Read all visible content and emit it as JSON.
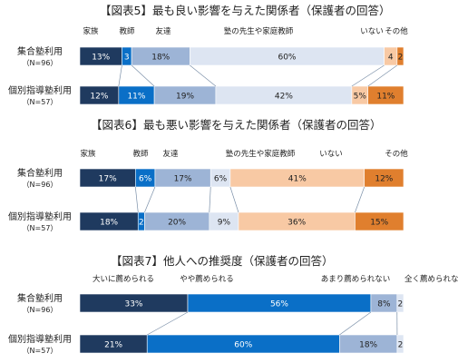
{
  "chart_data": [
    {
      "type": "bar",
      "title": "【図表5】最も良い影響を与えた関係者（保護者の回答）",
      "orientation": "horizontal-stacked-percent",
      "categories": [
        "集合塾利用",
        "個別指導塾利用"
      ],
      "category_notes": [
        "（N=96）",
        "（N=57）"
      ],
      "series": [
        {
          "name": "家族",
          "values": [
            13,
            12
          ],
          "color": "#1f3a5f",
          "labels": [
            "13%",
            "12%"
          ]
        },
        {
          "name": "教師",
          "values": [
            3,
            11
          ],
          "color": "#0a6fc7",
          "labels": [
            "3",
            "11%"
          ]
        },
        {
          "name": "友達",
          "values": [
            18,
            19
          ],
          "color": "#9db4d6",
          "labels": [
            "18%",
            "19%"
          ]
        },
        {
          "name": "塾の先生や家庭教師",
          "values": [
            60,
            42
          ],
          "color": "#dde5f2",
          "labels": [
            "60%",
            "42%"
          ]
        },
        {
          "name": "いない",
          "values": [
            4,
            5
          ],
          "color": "#f8c9a4",
          "labels": [
            "4",
            "5%"
          ]
        },
        {
          "name": "その他",
          "values": [
            2,
            11
          ],
          "color": "#e07f2e",
          "labels": [
            "2",
            "11%"
          ]
        }
      ]
    },
    {
      "type": "bar",
      "title": "【図表6】最も悪い影響を与えた関係者（保護者の回答）",
      "orientation": "horizontal-stacked-percent",
      "categories": [
        "集合塾利用",
        "個別指導塾利用"
      ],
      "category_notes": [
        "（N=96）",
        "（N=57）"
      ],
      "series": [
        {
          "name": "家族",
          "values": [
            17,
            18
          ],
          "color": "#1f3a5f",
          "labels": [
            "17%",
            "18%"
          ]
        },
        {
          "name": "教師",
          "values": [
            6,
            2
          ],
          "color": "#0a6fc7",
          "labels": [
            "6%",
            "2"
          ]
        },
        {
          "name": "友達",
          "values": [
            17,
            20
          ],
          "color": "#9db4d6",
          "labels": [
            "17%",
            "20%"
          ]
        },
        {
          "name": "塾の先生や家庭教師",
          "values": [
            6,
            9
          ],
          "color": "#dde5f2",
          "labels": [
            "6%",
            "9%"
          ]
        },
        {
          "name": "いない",
          "values": [
            41,
            36
          ],
          "color": "#f8c9a4",
          "labels": [
            "41%",
            "36%"
          ]
        },
        {
          "name": "その他",
          "values": [
            12,
            15
          ],
          "color": "#e07f2e",
          "labels": [
            "12%",
            "15%"
          ]
        }
      ]
    },
    {
      "type": "bar",
      "title": "【図表7】他人への推奨度（保護者の回答）",
      "orientation": "horizontal-stacked-percent",
      "categories": [
        "集合塾利用",
        "個別指導塾利用"
      ],
      "category_notes": [
        "（N=96）",
        "（N=57）"
      ],
      "series": [
        {
          "name": "大いに薦められる",
          "values": [
            33,
            21
          ],
          "color": "#1f3a5f",
          "labels": [
            "33%",
            "21%"
          ]
        },
        {
          "name": "やや薦められる",
          "values": [
            56,
            60
          ],
          "color": "#0a6fc7",
          "labels": [
            "56%",
            "60%"
          ]
        },
        {
          "name": "あまり薦められない",
          "values": [
            8,
            18
          ],
          "color": "#9db4d6",
          "labels": [
            "8%",
            "18%"
          ]
        },
        {
          "name": "全く薦められない",
          "values": [
            2,
            2
          ],
          "color": "#dde5f2",
          "labels": [
            "2",
            "2"
          ]
        }
      ]
    }
  ]
}
